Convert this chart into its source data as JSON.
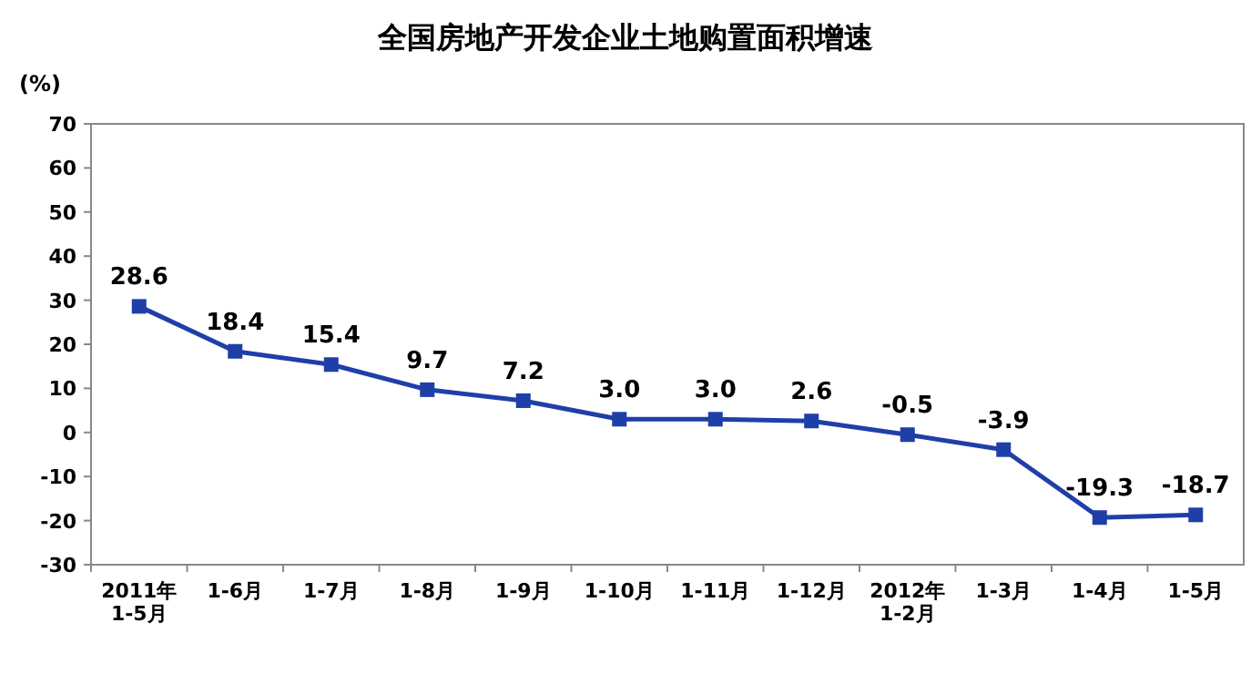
{
  "chart_data": {
    "type": "line",
    "title": "全国房地产开发企业土地购置面积增速",
    "ylabel": "(%)",
    "categories": [
      "2011年\n1-5月",
      "1-6月",
      "1-7月",
      "1-8月",
      "1-9月",
      "1-10月",
      "1-11月",
      "1-12月",
      "2012年\n1-2月",
      "1-3月",
      "1-4月",
      "1-5月"
    ],
    "values": [
      28.6,
      18.4,
      15.4,
      9.7,
      7.2,
      3.0,
      3.0,
      2.6,
      -0.5,
      -3.9,
      -19.3,
      -18.7
    ],
    "value_labels": [
      "28.6",
      "18.4",
      "15.4",
      "9.7",
      "7.2",
      "3.0",
      "3.0",
      "2.6",
      "-0.5",
      "-3.9",
      "-19.3",
      "-18.7"
    ],
    "color": "#1f3fa8",
    "marker": "square",
    "line_style": "solid",
    "ylim": [
      -30,
      70
    ],
    "yticks": [
      -30,
      -20,
      -10,
      0,
      10,
      20,
      30,
      40,
      50,
      60,
      70
    ]
  }
}
